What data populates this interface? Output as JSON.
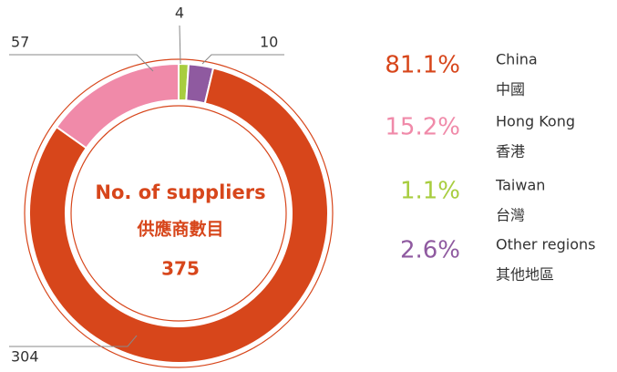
{
  "chart_data": {
    "type": "donut",
    "categories": [
      "China",
      "Hong Kong",
      "Taiwan",
      "Other regions"
    ],
    "categories_zh": [
      "中國",
      "香港",
      "台灣",
      "其他地區"
    ],
    "values": [
      304,
      57,
      4,
      10
    ],
    "percent_labels": [
      "81.1%",
      "15.2%",
      "1.1%",
      "2.6%"
    ],
    "colors": [
      "#d7461b",
      "#f08aa9",
      "#a8cd3f",
      "#8f5aa0"
    ],
    "center_label": {
      "title": "No. of suppliers",
      "title_zh": "供應商數目",
      "total": 375
    }
  }
}
